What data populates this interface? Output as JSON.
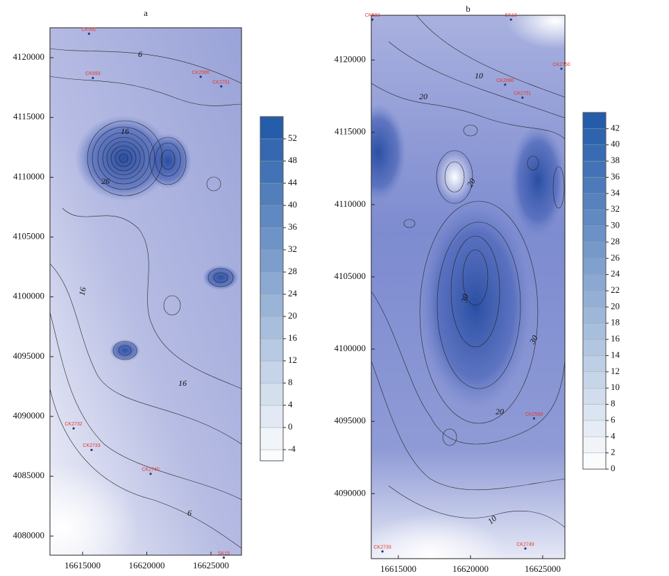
{
  "chart_data": [
    {
      "type": "contour",
      "title": "a",
      "xlim": [
        16612460,
        16627380
      ],
      "ylim": [
        4078400,
        4122500
      ],
      "xticks": [
        16615000,
        16620000,
        16625000
      ],
      "yticks": [
        4080000,
        4085000,
        4090000,
        4095000,
        4100000,
        4105000,
        4110000,
        4115000,
        4120000
      ],
      "colorbar": {
        "lim": [
          -6,
          56
        ],
        "ticks": [
          -4,
          0,
          4,
          8,
          12,
          16,
          20,
          24,
          28,
          32,
          36,
          40,
          44,
          48,
          52
        ],
        "low_color": "#ffffff",
        "high_color": "#1f58a8"
      },
      "contour_labels": [
        6,
        16,
        26,
        16,
        16,
        6
      ],
      "wells": [
        {
          "name": "CK592",
          "x": 16615500,
          "y": 4122000
        },
        {
          "name": "CK593",
          "x": 16615800,
          "y": 4118300
        },
        {
          "name": "CK2080",
          "x": 16624200,
          "y": 4118400
        },
        {
          "name": "CK2751",
          "x": 16625800,
          "y": 4117600
        },
        {
          "name": "CK2732",
          "x": 16614300,
          "y": 4089000
        },
        {
          "name": "CK2733",
          "x": 16615700,
          "y": 4087200
        },
        {
          "name": "CK2740",
          "x": 16620300,
          "y": 4085200
        },
        {
          "name": "SK15",
          "x": 16626000,
          "y": 4078200
        }
      ]
    },
    {
      "type": "contour",
      "title": "b",
      "xlim": [
        16613125,
        16626540
      ],
      "ylim": [
        4085500,
        4123100
      ],
      "xticks": [
        16615000,
        16620000,
        16625000
      ],
      "yticks": [
        4090000,
        4095000,
        4100000,
        4105000,
        4110000,
        4115000,
        4120000
      ],
      "colorbar": {
        "lim": [
          0,
          44
        ],
        "ticks": [
          0,
          2,
          4,
          6,
          8,
          10,
          12,
          14,
          16,
          18,
          20,
          22,
          24,
          26,
          28,
          30,
          32,
          34,
          36,
          38,
          40,
          42
        ],
        "low_color": "#ffffff",
        "high_color": "#1f58a8"
      },
      "contour_labels": [
        10,
        20,
        20,
        30,
        30,
        20,
        10
      ],
      "wells": [
        {
          "name": "CK592",
          "x": 16613200,
          "y": 4122800
        },
        {
          "name": "SK13",
          "x": 16622800,
          "y": 4122800
        },
        {
          "name": "CK2750",
          "x": 16626300,
          "y": 4119400
        },
        {
          "name": "CK2080",
          "x": 16622400,
          "y": 4118300
        },
        {
          "name": "CK2751",
          "x": 16623600,
          "y": 4117400
        },
        {
          "name": "CK2558",
          "x": 16624400,
          "y": 4095200
        },
        {
          "name": "CK2733",
          "x": 16613900,
          "y": 4086000
        },
        {
          "name": "CK2749",
          "x": 16623800,
          "y": 4086200
        }
      ]
    }
  ]
}
